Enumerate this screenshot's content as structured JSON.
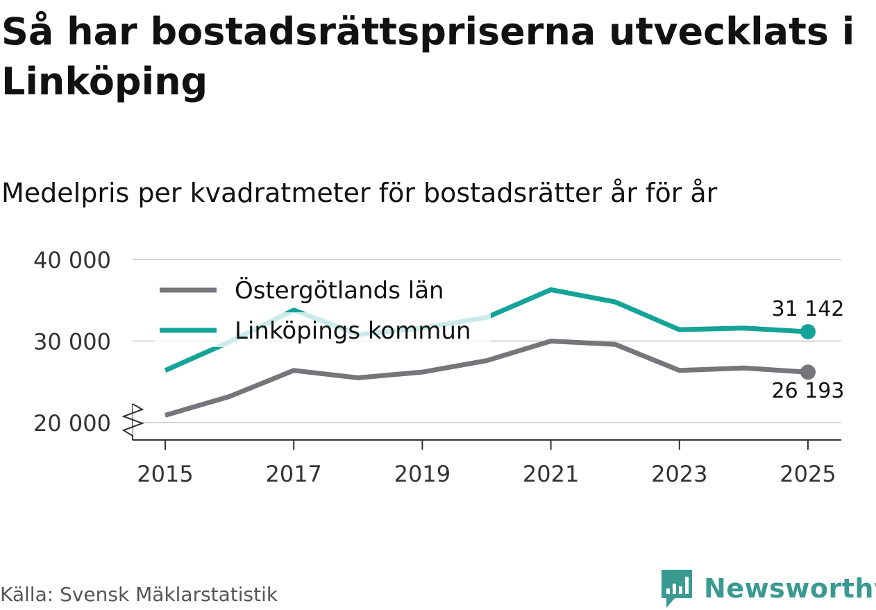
{
  "chart_data": {
    "type": "line",
    "title": "Så har bostadsrättspriserna utvecklats i Linköping",
    "subtitle": "Medelpris per kvadratmeter för bostadsrätter år för år",
    "x": [
      2015,
      2016,
      2017,
      2018,
      2019,
      2020,
      2021,
      2022,
      2023,
      2024,
      2025
    ],
    "x_ticks": [
      "2015",
      "2017",
      "2019",
      "2021",
      "2023",
      "2025"
    ],
    "y_ticks": [
      "20 000",
      "30 000",
      "40 000"
    ],
    "ylim": [
      18000,
      40000
    ],
    "y_tick_values": [
      20000,
      30000,
      40000
    ],
    "axis_break": true,
    "grid": true,
    "legend_position": "top-left",
    "series": [
      {
        "name": "Östergötlands län",
        "color": "#75757a",
        "values": [
          20900,
          23200,
          26400,
          25500,
          26200,
          27600,
          30000,
          29600,
          26400,
          26700,
          26193
        ],
        "end_label": "26 193",
        "end_label_position": "below"
      },
      {
        "name": "Linköpings kommun",
        "color": "#14a398",
        "values": [
          26400,
          29900,
          33800,
          30800,
          31600,
          32900,
          36300,
          34800,
          31400,
          31600,
          31142
        ],
        "end_label": "31 142",
        "end_label_position": "above"
      }
    ]
  },
  "footer": {
    "source": "Källa: Svensk Mäklarstatistik",
    "brand": "Newsworthy",
    "brand_color": "#3a9a92"
  }
}
